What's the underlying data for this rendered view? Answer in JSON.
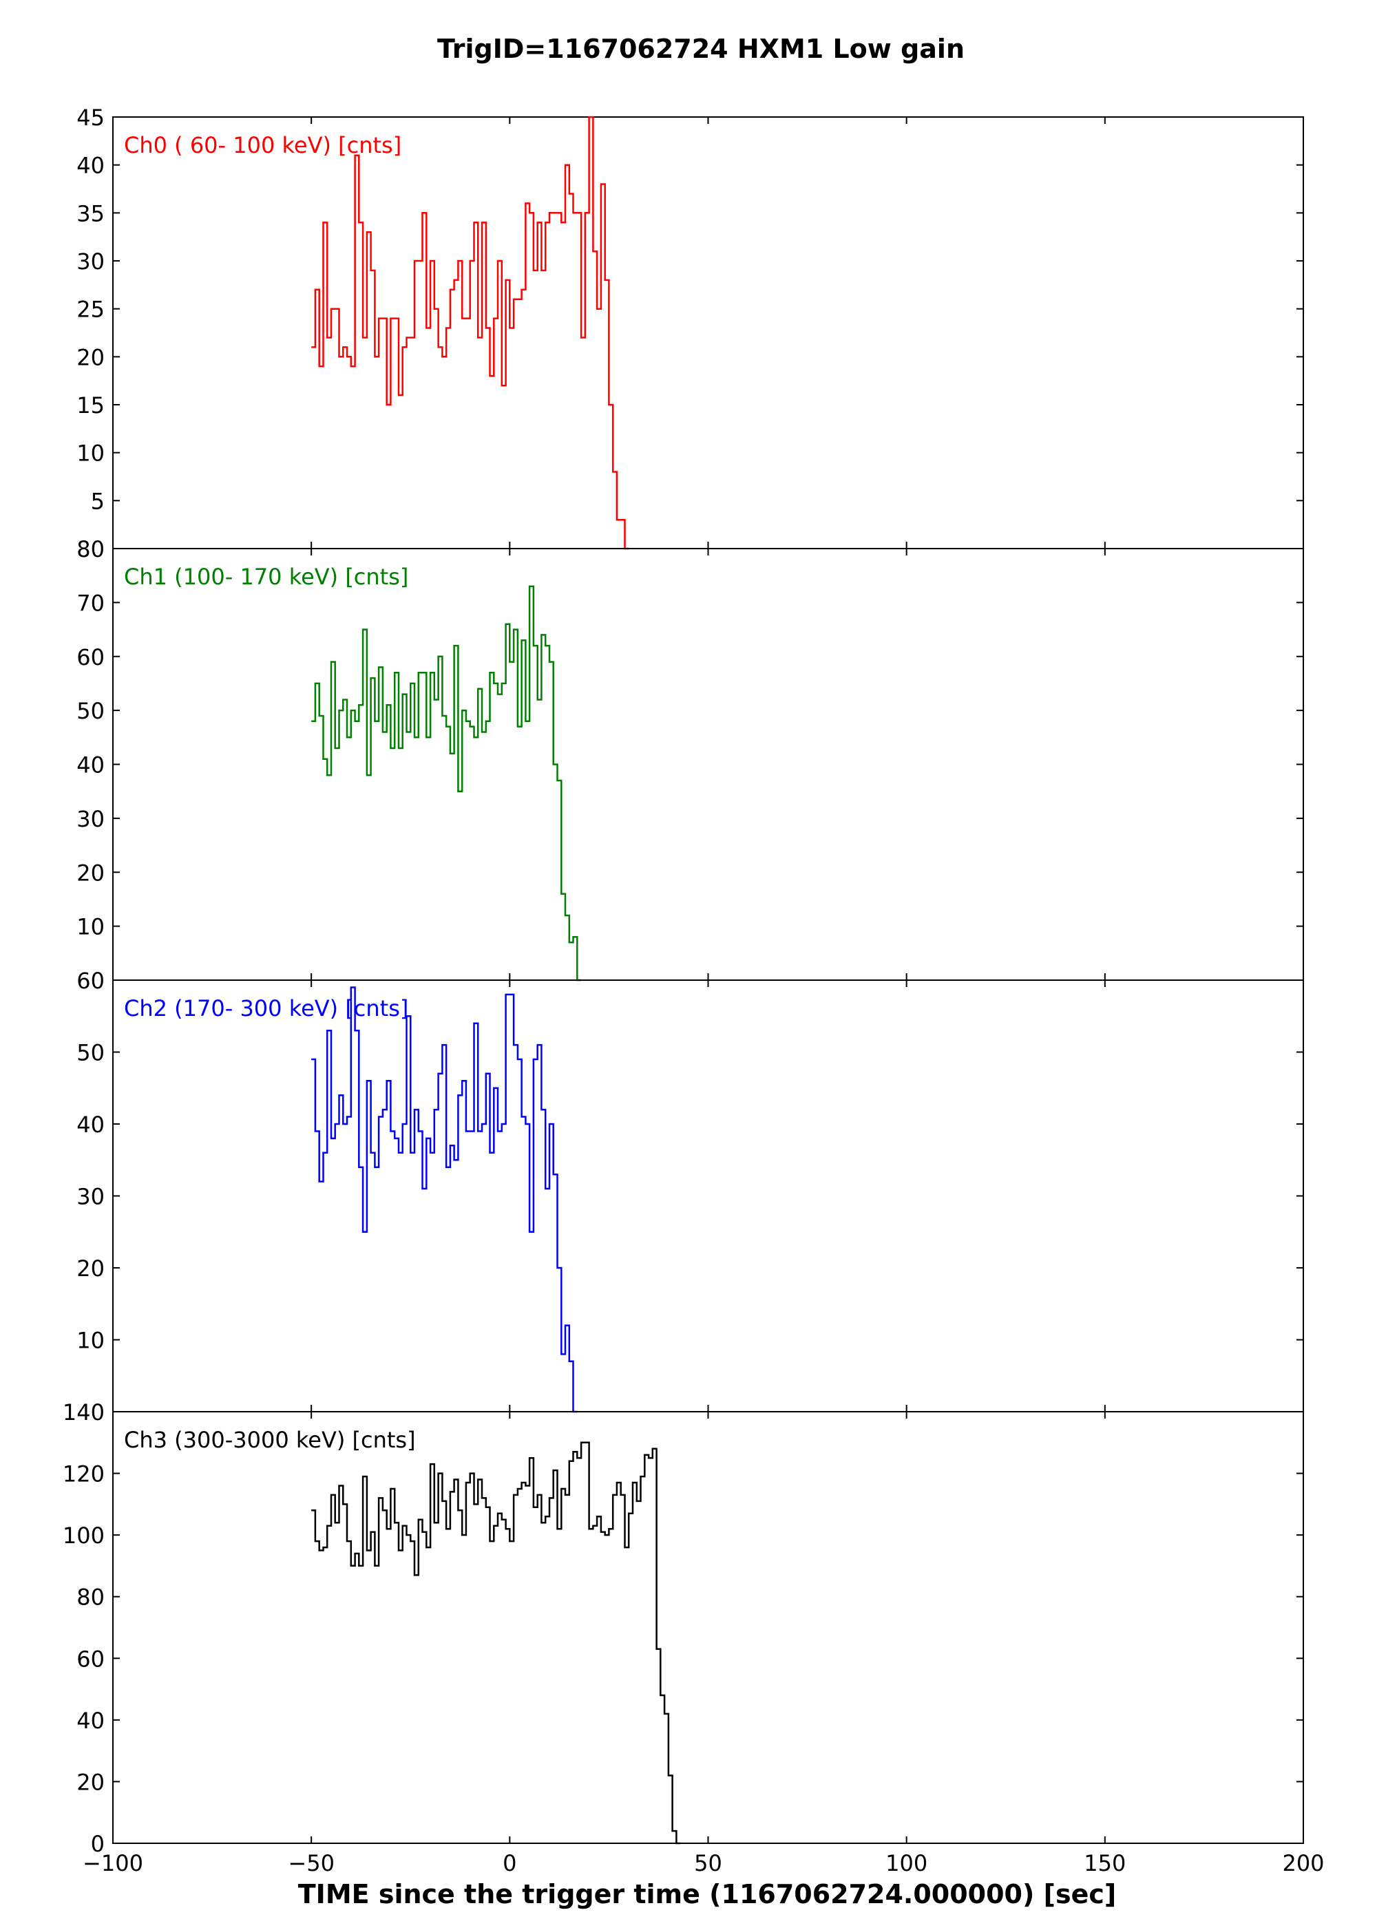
{
  "chart_data": {
    "type": "line",
    "title": "TrigID=1167062724 HXM1 Low gain",
    "xlabel": "TIME since the trigger time (1167062724.000000) [sec]",
    "xlim": [
      -100,
      200
    ],
    "xticks": [
      -100,
      -50,
      0,
      50,
      100,
      150,
      200
    ],
    "xtick_labels": [
      "−100",
      "−50",
      "0",
      "50",
      "100",
      "150",
      "200"
    ],
    "grid": false,
    "step_width": 1.0,
    "panels": [
      {
        "label": "Ch0 ( 60- 100 keV) [cnts]",
        "color": "#ff0000",
        "ylim": [
          0,
          45
        ],
        "yticks": [
          5,
          10,
          15,
          20,
          25,
          30,
          35,
          40,
          45
        ],
        "x_start": -50,
        "values": [
          21,
          27,
          19,
          34,
          22,
          25,
          25,
          20,
          21,
          20,
          19,
          41,
          34,
          22,
          33,
          29,
          20,
          24,
          24,
          15,
          24,
          24,
          16,
          21,
          22,
          22,
          30,
          30,
          35,
          23,
          30,
          25,
          21,
          20,
          23,
          27,
          28,
          30,
          24,
          24,
          30,
          34,
          22,
          34,
          23,
          18,
          24,
          30,
          17,
          28,
          23,
          26,
          26,
          27,
          36,
          35,
          29,
          34,
          29,
          34,
          35,
          35,
          35,
          34,
          40,
          37,
          35,
          35,
          22,
          35,
          47,
          31,
          25,
          38,
          28,
          15,
          8,
          3,
          3,
          0
        ]
      },
      {
        "label": "Ch1 (100- 170 keV) [cnts]",
        "color": "#008000",
        "ylim": [
          0,
          80
        ],
        "yticks": [
          10,
          20,
          30,
          40,
          50,
          60,
          70,
          80
        ],
        "x_start": -50,
        "values": [
          48,
          55,
          49,
          41,
          38,
          59,
          43,
          50,
          52,
          45,
          50,
          48,
          51,
          65,
          38,
          56,
          48,
          58,
          46,
          51,
          43,
          57,
          43,
          53,
          46,
          55,
          45,
          57,
          57,
          45,
          57,
          52,
          60,
          49,
          47,
          42,
          62,
          35,
          50,
          48,
          47,
          45,
          54,
          46,
          48,
          57,
          55,
          53,
          55,
          66,
          59,
          65,
          47,
          63,
          48,
          73,
          62,
          52,
          64,
          62,
          59,
          40,
          37,
          16,
          12,
          7,
          8,
          0
        ]
      },
      {
        "label": "Ch2 (170- 300 keV) [cnts]",
        "color": "#0000ff",
        "ylim": [
          0,
          60
        ],
        "yticks": [
          10,
          20,
          30,
          40,
          50,
          60
        ],
        "x_start": -50,
        "values": [
          49,
          39,
          32,
          36,
          53,
          38,
          40,
          44,
          40,
          41,
          59,
          53,
          34,
          25,
          46,
          36,
          34,
          41,
          42,
          46,
          39,
          38,
          36,
          40,
          55,
          36,
          42,
          39,
          31,
          38,
          36,
          42,
          47,
          51,
          34,
          37,
          35,
          44,
          46,
          39,
          39,
          54,
          39,
          40,
          47,
          36,
          45,
          39,
          40,
          58,
          58,
          51,
          49,
          41,
          40,
          25,
          49,
          51,
          42,
          31,
          40,
          33,
          20,
          8,
          12,
          7,
          0
        ]
      },
      {
        "label": "Ch3 (300-3000 keV) [cnts]",
        "color": "#000000",
        "ylim": [
          0,
          140
        ],
        "yticks": [
          0,
          20,
          40,
          60,
          80,
          100,
          120,
          140
        ],
        "x_start": -50,
        "values": [
          108,
          98,
          95,
          96,
          103,
          113,
          104,
          116,
          110,
          98,
          90,
          94,
          90,
          119,
          95,
          101,
          90,
          112,
          108,
          102,
          115,
          104,
          95,
          103,
          100,
          98,
          87,
          105,
          101,
          96,
          123,
          104,
          120,
          111,
          102,
          114,
          118,
          108,
          100,
          117,
          120,
          110,
          118,
          112,
          109,
          98,
          103,
          107,
          105,
          102,
          98,
          113,
          115,
          117,
          116,
          125,
          109,
          113,
          104,
          106,
          112,
          121,
          102,
          115,
          113,
          124,
          127,
          125,
          130,
          130,
          102,
          103,
          106,
          101,
          100,
          102,
          113,
          117,
          113,
          96,
          107,
          117,
          111,
          119,
          126,
          125,
          128,
          63,
          48,
          42,
          22,
          4,
          0
        ]
      }
    ]
  }
}
